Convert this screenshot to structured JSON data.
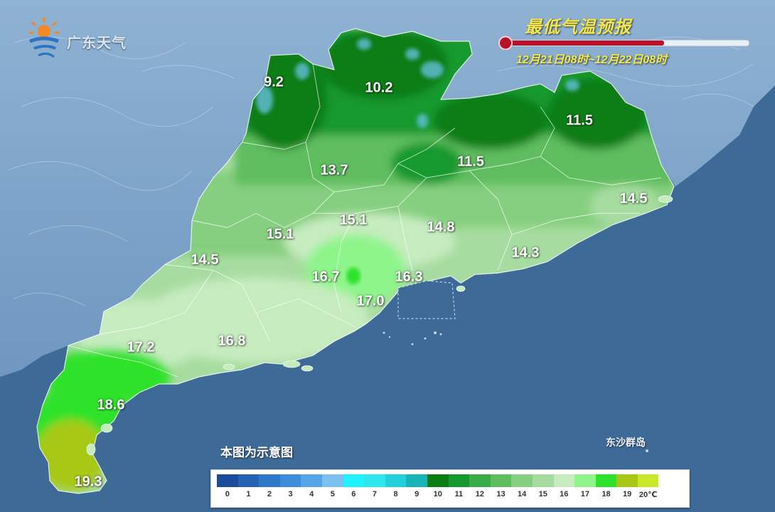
{
  "brand": {
    "name": "广东天气",
    "logo_icon": "sun-weather-logo-icon"
  },
  "title": "最低气温预报",
  "date_range": "12月21日08时~12月22日08时",
  "note": "本图为示意图",
  "island_label": "东沙群岛",
  "temperatures": [
    "9.2",
    "10.2",
    "11.5",
    "11.5",
    "13.7",
    "14.5",
    "15.1",
    "15.1",
    "14.8",
    "14.3",
    "14.5",
    "16.7",
    "16.3",
    "17.0",
    "17.2",
    "16.8",
    "18.6",
    "19.3"
  ],
  "legend": {
    "labels": [
      "0",
      "1",
      "2",
      "3",
      "4",
      "5",
      "6",
      "7",
      "8",
      "9",
      "10",
      "11",
      "12",
      "13",
      "14",
      "15",
      "16",
      "17",
      "18",
      "19",
      "20℃"
    ],
    "colors": [
      "#1c4b9c",
      "#2562b2",
      "#2f78c8",
      "#3d8ddb",
      "#56a5e8",
      "#7cc0f0",
      "#1ef4ff",
      "#2de6f0",
      "#23cfda",
      "#19b4b8",
      "#0b7d12",
      "#14992e",
      "#3aac4a",
      "#5ebd5e",
      "#86cf80",
      "#a7dca0",
      "#c6ebbf",
      "#8ef58a",
      "#2ee22c",
      "#a8c816",
      "#c9e82a"
    ]
  },
  "colors": {
    "sea": "#3e6a98",
    "title": "#f4e64a"
  }
}
